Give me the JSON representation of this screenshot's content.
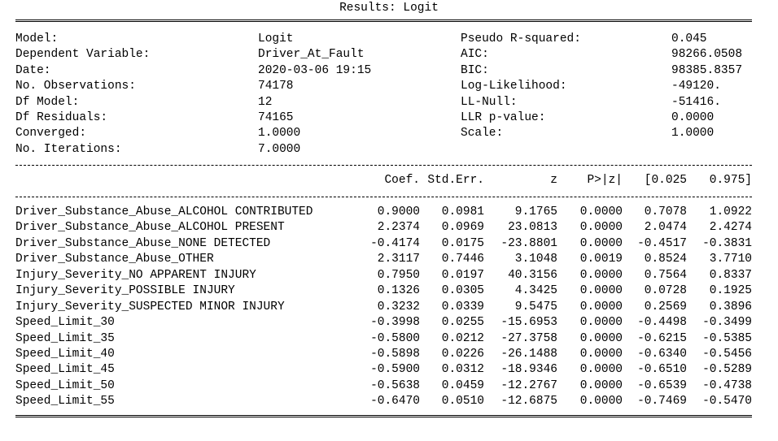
{
  "title": "Results: Logit",
  "info": [
    [
      "Model:",
      "Logit",
      "Pseudo R-squared:",
      "0.045"
    ],
    [
      "Dependent Variable:",
      "Driver_At_Fault",
      "AIC:",
      "98266.0508"
    ],
    [
      "Date:",
      "2020-03-06 19:15",
      "BIC:",
      "98385.8357"
    ],
    [
      "No. Observations:",
      "74178",
      "Log-Likelihood:",
      "-49120."
    ],
    [
      "Df Model:",
      "12",
      "LL-Null:",
      "-51416."
    ],
    [
      "Df Residuals:",
      "74165",
      "LLR p-value:",
      "0.0000"
    ],
    [
      "Converged:",
      "1.0000",
      "Scale:",
      "1.0000"
    ],
    [
      "No. Iterations:",
      "7.0000",
      "",
      ""
    ]
  ],
  "columns": [
    "Coef.",
    "Std.Err.",
    "z",
    "P>|z|",
    "[0.025",
    "0.975]"
  ],
  "rows": [
    [
      "Driver_Substance_Abuse_ALCOHOL CONTRIBUTED",
      "0.9000",
      "0.0981",
      "9.1765",
      "0.0000",
      "0.7078",
      "1.0922"
    ],
    [
      "Driver_Substance_Abuse_ALCOHOL PRESENT",
      "2.2374",
      "0.0969",
      "23.0813",
      "0.0000",
      "2.0474",
      "2.4274"
    ],
    [
      "Driver_Substance_Abuse_NONE DETECTED",
      "-0.4174",
      "0.0175",
      "-23.8801",
      "0.0000",
      "-0.4517",
      "-0.3831"
    ],
    [
      "Driver_Substance_Abuse_OTHER",
      "2.3117",
      "0.7446",
      "3.1048",
      "0.0019",
      "0.8524",
      "3.7710"
    ],
    [
      "Injury_Severity_NO APPARENT INJURY",
      "0.7950",
      "0.0197",
      "40.3156",
      "0.0000",
      "0.7564",
      "0.8337"
    ],
    [
      "Injury_Severity_POSSIBLE INJURY",
      "0.1326",
      "0.0305",
      "4.3425",
      "0.0000",
      "0.0728",
      "0.1925"
    ],
    [
      "Injury_Severity_SUSPECTED MINOR INJURY",
      "0.3232",
      "0.0339",
      "9.5475",
      "0.0000",
      "0.2569",
      "0.3896"
    ],
    [
      "Speed_Limit_30",
      "-0.3998",
      "0.0255",
      "-15.6953",
      "0.0000",
      "-0.4498",
      "-0.3499"
    ],
    [
      "Speed_Limit_35",
      "-0.5800",
      "0.0212",
      "-27.3758",
      "0.0000",
      "-0.6215",
      "-0.5385"
    ],
    [
      "Speed_Limit_40",
      "-0.5898",
      "0.0226",
      "-26.1488",
      "0.0000",
      "-0.6340",
      "-0.5456"
    ],
    [
      "Speed_Limit_45",
      "-0.5900",
      "0.0312",
      "-18.9346",
      "0.0000",
      "-0.6510",
      "-0.5289"
    ],
    [
      "Speed_Limit_50",
      "-0.5638",
      "0.0459",
      "-12.2767",
      "0.0000",
      "-0.6539",
      "-0.4738"
    ],
    [
      "Speed_Limit_55",
      "-0.6470",
      "0.0510",
      "-12.6875",
      "0.0000",
      "-0.7469",
      "-0.5470"
    ]
  ]
}
